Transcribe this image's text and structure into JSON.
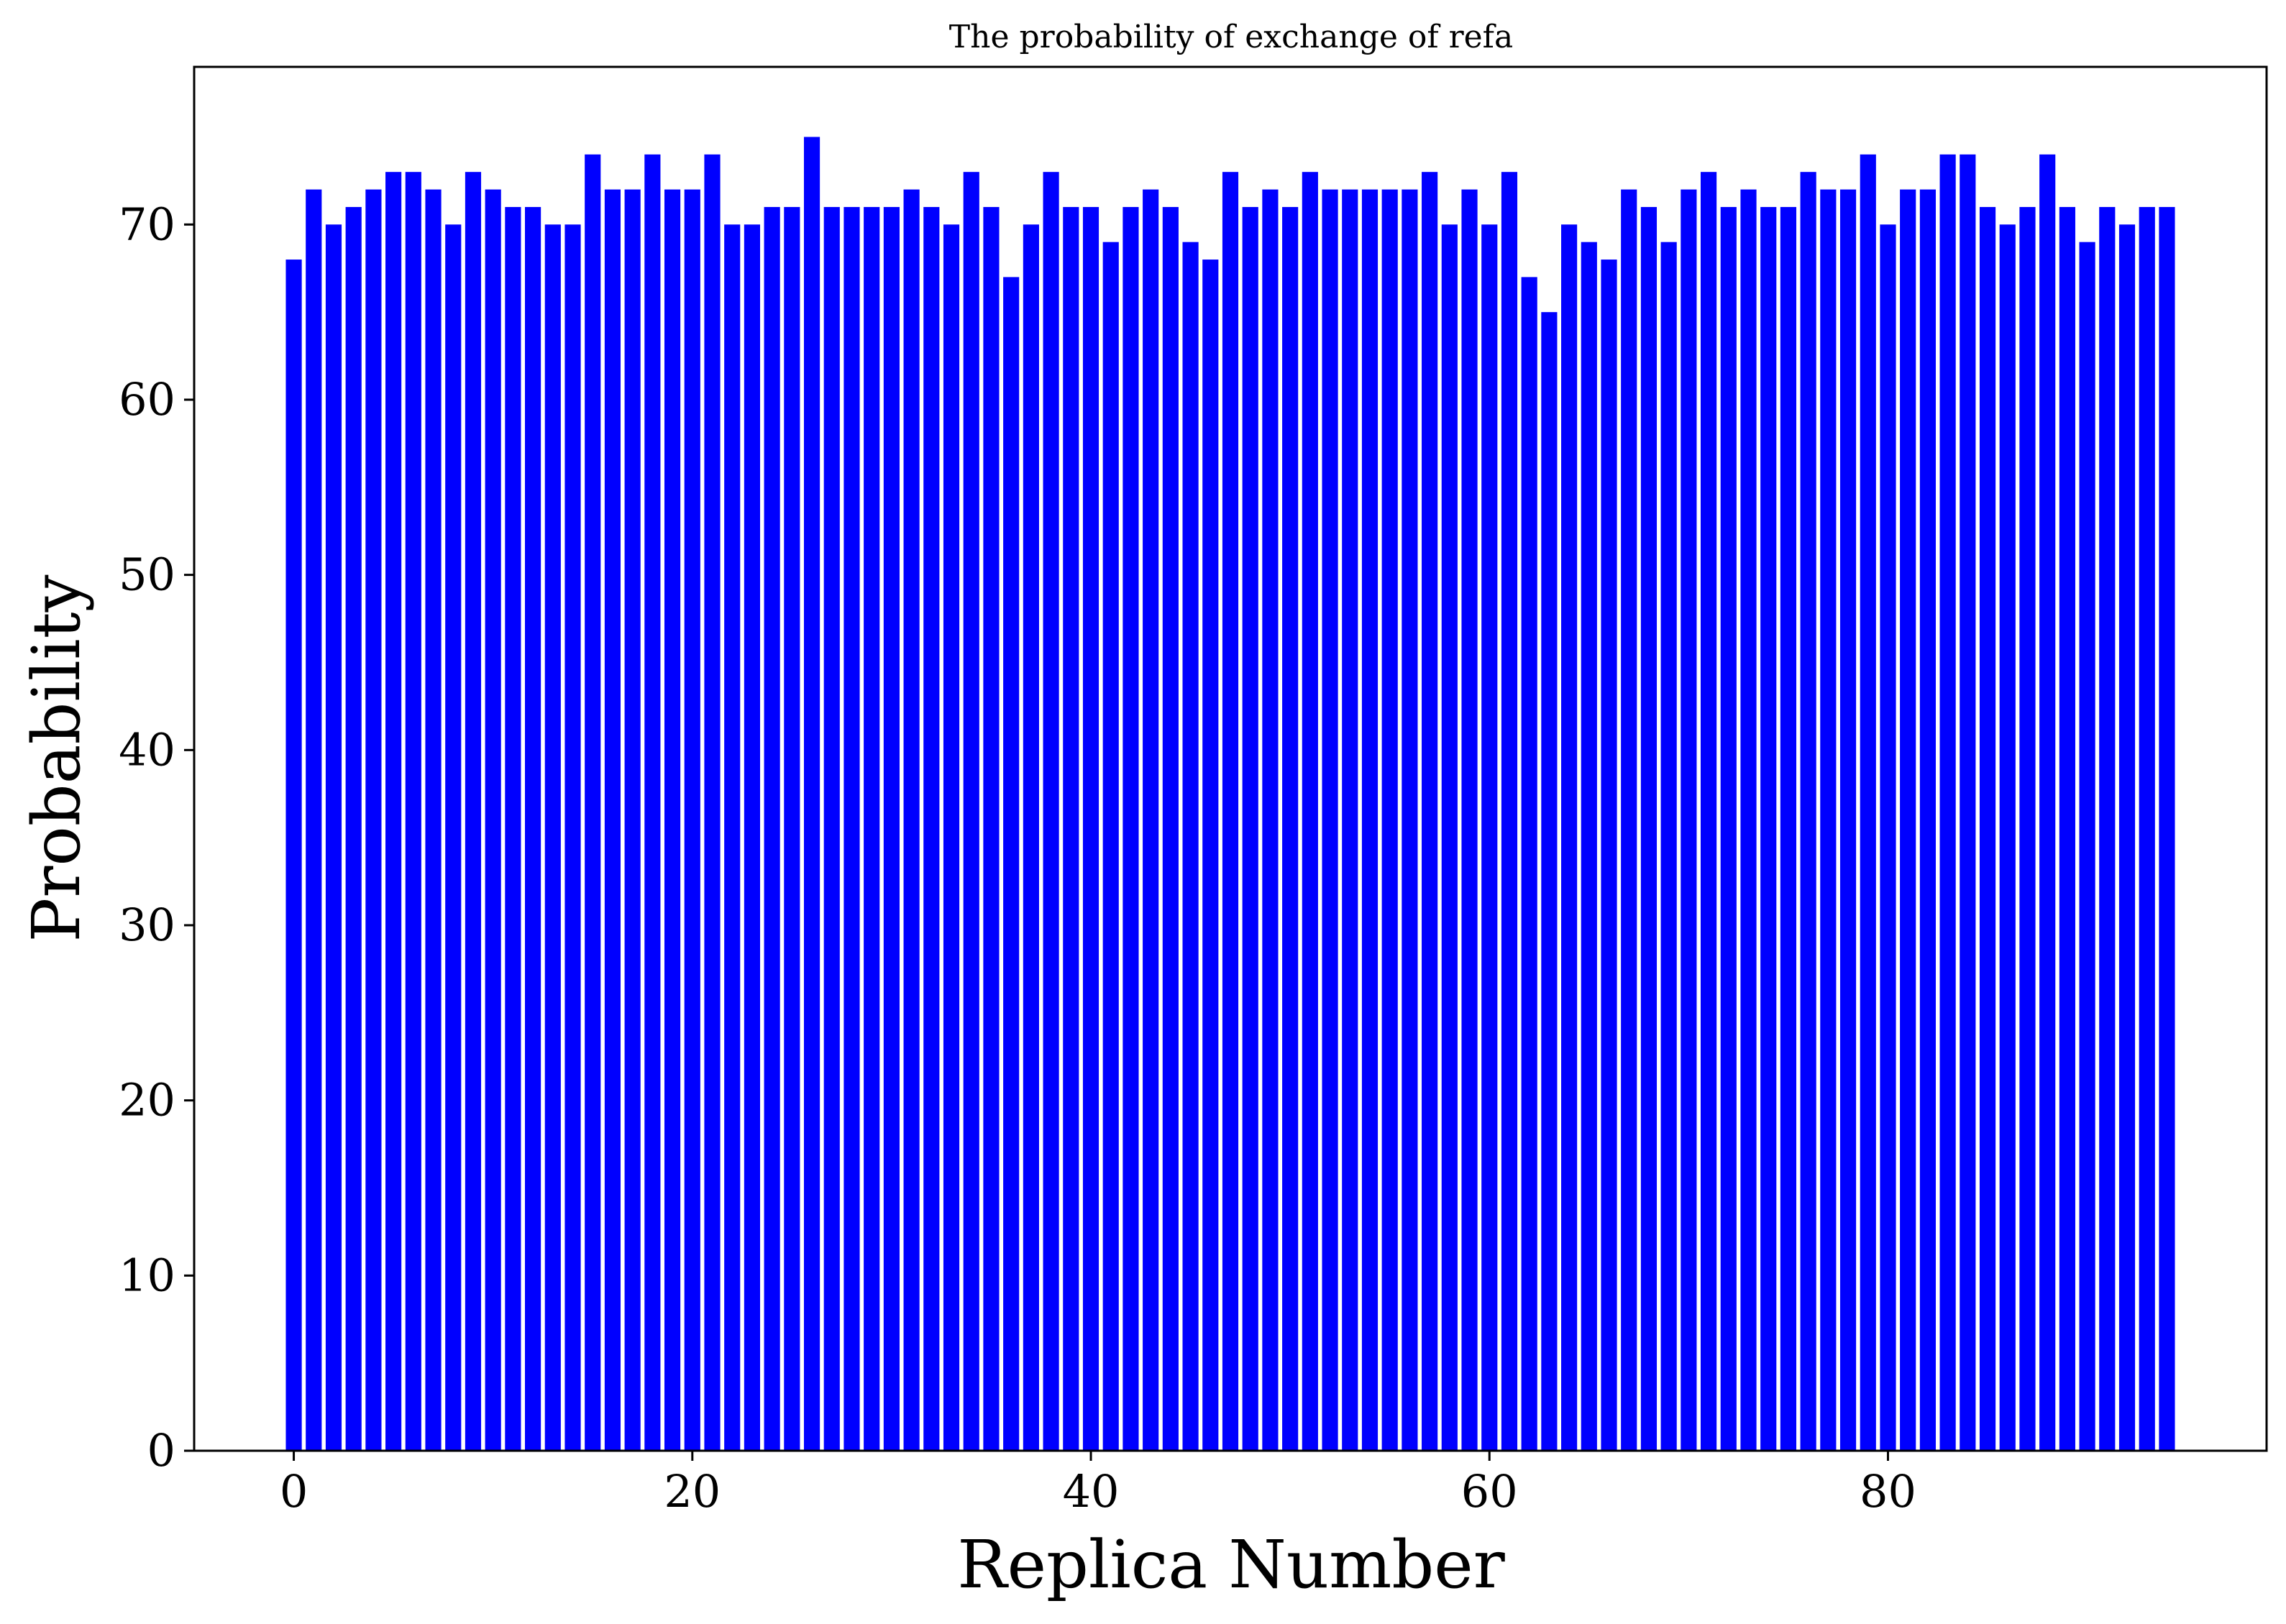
{
  "chart_data": {
    "type": "bar",
    "title": "The probability of exchange of  refa",
    "xlabel": "Replica Number",
    "ylabel": "Probability",
    "xlim": [
      -5,
      99
    ],
    "ylim": [
      0,
      79
    ],
    "xticks": [
      0,
      20,
      40,
      60,
      80
    ],
    "yticks": [
      0,
      10,
      20,
      30,
      40,
      50,
      60,
      70
    ],
    "grid": false,
    "bar_color": "#0000ff",
    "x": [
      0,
      1,
      2,
      3,
      4,
      5,
      6,
      7,
      8,
      9,
      10,
      11,
      12,
      13,
      14,
      15,
      16,
      17,
      18,
      19,
      20,
      21,
      22,
      23,
      24,
      25,
      26,
      27,
      28,
      29,
      30,
      31,
      32,
      33,
      34,
      35,
      36,
      37,
      38,
      39,
      40,
      41,
      42,
      43,
      44,
      45,
      46,
      47,
      48,
      49,
      50,
      51,
      52,
      53,
      54,
      55,
      56,
      57,
      58,
      59,
      60,
      61,
      62,
      63,
      64,
      65,
      66,
      67,
      68,
      69,
      70,
      71,
      72,
      73,
      74,
      75,
      76,
      77,
      78,
      79,
      80,
      81,
      82,
      83,
      84,
      85,
      86,
      87,
      88,
      89,
      90,
      91,
      92,
      93,
      94
    ],
    "values": [
      68,
      72,
      70,
      71,
      72,
      73,
      73,
      72,
      70,
      73,
      72,
      71,
      71,
      70,
      70,
      74,
      72,
      72,
      74,
      72,
      72,
      74,
      70,
      70,
      71,
      71,
      75,
      71,
      71,
      71,
      71,
      72,
      71,
      70,
      73,
      71,
      67,
      70,
      73,
      71,
      71,
      69,
      71,
      72,
      71,
      69,
      68,
      73,
      71,
      72,
      71,
      73,
      72,
      72,
      72,
      72,
      72,
      73,
      70,
      72,
      70,
      73,
      67,
      65,
      70,
      69,
      68,
      72,
      71,
      69,
      72,
      73,
      71,
      72,
      71,
      71,
      73,
      72,
      72,
      74,
      70,
      72,
      72,
      74,
      74,
      71,
      70,
      71,
      74,
      71,
      69,
      71,
      70,
      71,
      71
    ]
  }
}
